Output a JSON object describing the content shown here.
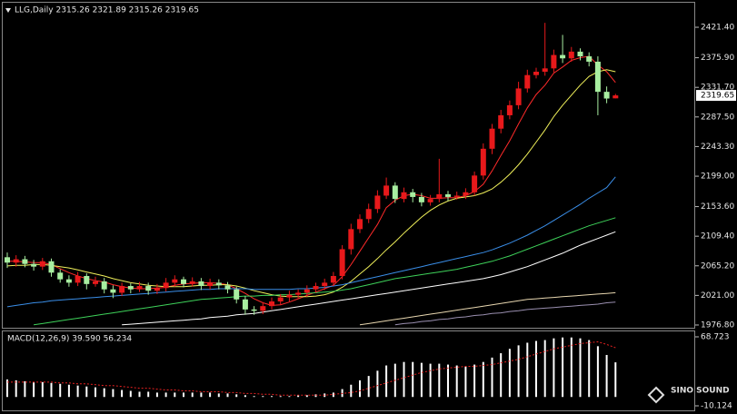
{
  "chart_data": [
    {
      "type": "candlestick",
      "title": "LLG,Daily 2315.26 2321.89 2315.26 2319.65",
      "watermark": "SINO SOUND",
      "up_color": "#e8191b",
      "down_color": "#a8eea0",
      "open": [
        2078,
        2070,
        2075,
        2068,
        2064,
        2072,
        2055,
        2045,
        2040,
        2050,
        2038,
        2042,
        2030,
        2025,
        2035,
        2030,
        2035,
        2028,
        2032,
        2040,
        2045,
        2038,
        2042,
        2035,
        2040,
        2036,
        2030,
        2015,
        2000,
        1998,
        2005,
        2012,
        2018,
        2022,
        2025,
        2030,
        2035,
        2040,
        2050,
        2090,
        2120,
        2135,
        2150,
        2170,
        2185,
        2165,
        2175,
        2168,
        2160,
        2165,
        2172,
        2168,
        2170,
        2175,
        2200,
        2240,
        2270,
        2290,
        2305,
        2330,
        2350,
        2355,
        2360,
        2380,
        2375,
        2385,
        2378,
        2370,
        2325,
        2315.26
      ],
      "high": [
        2085,
        2081,
        2080,
        2074,
        2077,
        2076,
        2060,
        2051,
        2056,
        2054,
        2049,
        2047,
        2036,
        2040,
        2039,
        2041,
        2040,
        2038,
        2047,
        2051,
        2049,
        2048,
        2047,
        2046,
        2045,
        2041,
        2034,
        2020,
        2005,
        2011,
        2018,
        2023,
        2028,
        2030,
        2036,
        2040,
        2046,
        2056,
        2096,
        2128,
        2142,
        2158,
        2178,
        2197,
        2190,
        2182,
        2180,
        2174,
        2171,
        2225,
        2177,
        2176,
        2181,
        2206,
        2248,
        2277,
        2298,
        2312,
        2340,
        2358,
        2361,
        2428,
        2388,
        2410,
        2392,
        2390,
        2384,
        2378,
        2333,
        2321.89
      ],
      "low": [
        2062,
        2064,
        2063,
        2058,
        2059,
        2049,
        2040,
        2034,
        2035,
        2030,
        2034,
        2024,
        2017,
        2020,
        2024,
        2026,
        2022,
        2023,
        2027,
        2034,
        2033,
        2034,
        2029,
        2030,
        2030,
        2024,
        2009,
        1992,
        1992,
        1993,
        2000,
        2007,
        2012,
        2017,
        2019,
        2025,
        2029,
        2035,
        2045,
        2082,
        2114,
        2129,
        2144,
        2165,
        2159,
        2160,
        2160,
        2154,
        2155,
        2160,
        2162,
        2164,
        2165,
        2170,
        2194,
        2232,
        2263,
        2284,
        2299,
        2324,
        2345,
        2349,
        2354,
        2368,
        2370,
        2372,
        2363,
        2290,
        2308,
        2315.26
      ],
      "close": [
        2070,
        2075,
        2068,
        2064,
        2072,
        2055,
        2045,
        2040,
        2050,
        2038,
        2042,
        2030,
        2025,
        2035,
        2030,
        2035,
        2028,
        2032,
        2040,
        2045,
        2038,
        2042,
        2035,
        2040,
        2036,
        2030,
        2015,
        2000,
        1998,
        2005,
        2012,
        2018,
        2022,
        2025,
        2030,
        2035,
        2040,
        2050,
        2090,
        2120,
        2135,
        2150,
        2170,
        2185,
        2165,
        2175,
        2168,
        2160,
        2165,
        2172,
        2168,
        2170,
        2175,
        2200,
        2240,
        2270,
        2290,
        2305,
        2330,
        2350,
        2355,
        2360,
        2380,
        2375,
        2385,
        2378,
        2370,
        2325,
        2315,
        2319.65
      ],
      "series": [
        {
          "color": "#ff2a2a",
          "values": [
            2072,
            2072,
            2071,
            2070,
            2070,
            2067,
            2061,
            2055,
            2050,
            2046,
            2043,
            2041,
            2037,
            2034,
            2032,
            2031,
            2031,
            2032,
            2033,
            2036,
            2038,
            2039,
            2040,
            2040,
            2039,
            2037,
            2031,
            2024,
            2016,
            2010,
            2006,
            2007,
            2011,
            2016,
            2021,
            2026,
            2031,
            2036,
            2049,
            2067,
            2087,
            2107,
            2127,
            2152,
            2163,
            2170,
            2172,
            2170,
            2166,
            2166,
            2167,
            2167,
            2170,
            2176,
            2187,
            2207,
            2230,
            2252,
            2277,
            2301,
            2321,
            2335,
            2353,
            2362,
            2372,
            2376,
            2378,
            2365,
            2355,
            2339
          ]
        },
        {
          "color": "#f0f05a",
          "values": [
            2065,
            2066,
            2066,
            2067,
            2067,
            2066,
            2064,
            2062,
            2059,
            2056,
            2053,
            2050,
            2046,
            2043,
            2040,
            2038,
            2036,
            2035,
            2034,
            2034,
            2034,
            2035,
            2036,
            2036,
            2037,
            2037,
            2035,
            2032,
            2028,
            2025,
            2022,
            2020,
            2019,
            2019,
            2019,
            2020,
            2022,
            2026,
            2033,
            2042,
            2053,
            2064,
            2076,
            2089,
            2101,
            2114,
            2126,
            2138,
            2148,
            2156,
            2162,
            2166,
            2168,
            2170,
            2174,
            2180,
            2190,
            2202,
            2216,
            2232,
            2250,
            2268,
            2288,
            2305,
            2320,
            2335,
            2348,
            2355,
            2358,
            2355
          ]
        },
        {
          "color": "#3a8ee8",
          "values": [
            2004,
            2006,
            2008,
            2010,
            2011,
            2013,
            2014,
            2015,
            2016,
            2017,
            2018,
            2019,
            2020,
            2021,
            2022,
            2023,
            2024,
            2025,
            2026,
            2027,
            2028,
            2029,
            2030,
            2030,
            2031,
            2031,
            2031,
            2031,
            2030,
            2030,
            2030,
            2030,
            2030,
            2031,
            2031,
            2032,
            2033,
            2035,
            2037,
            2040,
            2043,
            2046,
            2049,
            2052,
            2055,
            2058,
            2061,
            2064,
            2067,
            2070,
            2073,
            2076,
            2079,
            2082,
            2085,
            2089,
            2094,
            2099,
            2105,
            2111,
            2118,
            2125,
            2133,
            2141,
            2149,
            2157,
            2166,
            2174,
            2182,
            2198
          ]
        },
        {
          "color": "#3ed25a",
          "values": [
            null,
            null,
            null,
            1977,
            1979,
            1981,
            1983,
            1985,
            1987,
            1989,
            1991,
            1993,
            1995,
            1997,
            1999,
            2001,
            2003,
            2005,
            2007,
            2009,
            2011,
            2013,
            2015,
            2016,
            2017,
            2018,
            2019,
            2020,
            2020,
            2021,
            2021,
            2022,
            2022,
            2023,
            2024,
            2025,
            2026,
            2027,
            2029,
            2031,
            2034,
            2037,
            2040,
            2043,
            2046,
            2048,
            2050,
            2052,
            2054,
            2056,
            2058,
            2060,
            2063,
            2066,
            2069,
            2072,
            2076,
            2080,
            2085,
            2090,
            2095,
            2100,
            2105,
            2110,
            2115,
            2120,
            2125,
            2129,
            2133,
            2137
          ]
        },
        {
          "color": "#ffffff",
          "values": [
            null,
            null,
            null,
            null,
            null,
            null,
            null,
            null,
            null,
            null,
            null,
            null,
            null,
            1977,
            1978,
            1979,
            1980,
            1981,
            1982,
            1983,
            1984,
            1985,
            1986,
            1988,
            1989,
            1990,
            1992,
            1993,
            1994,
            1996,
            1998,
            2000,
            2002,
            2004,
            2006,
            2008,
            2010,
            2012,
            2014,
            2016,
            2018,
            2020,
            2022,
            2024,
            2026,
            2028,
            2030,
            2032,
            2034,
            2036,
            2038,
            2040,
            2042,
            2044,
            2046,
            2049,
            2052,
            2056,
            2060,
            2064,
            2069,
            2074,
            2079,
            2084,
            2090,
            2096,
            2101,
            2106,
            2111,
            2116
          ]
        },
        {
          "color": "#e8d7b0",
          "values": [
            null,
            null,
            null,
            null,
            null,
            null,
            null,
            null,
            null,
            null,
            null,
            null,
            null,
            null,
            null,
            null,
            null,
            null,
            null,
            null,
            null,
            null,
            null,
            null,
            null,
            null,
            null,
            null,
            null,
            null,
            null,
            null,
            null,
            null,
            null,
            null,
            null,
            null,
            null,
            null,
            1977,
            1979,
            1981,
            1983,
            1985,
            1987,
            1989,
            1991,
            1993,
            1995,
            1997,
            1999,
            2001,
            2003,
            2005,
            2007,
            2009,
            2011,
            2013,
            2015,
            2016,
            2017,
            2018,
            2019,
            2020,
            2021,
            2022,
            2023,
            2024,
            2025
          ]
        },
        {
          "color": "#9a8fb0",
          "values": [
            null,
            null,
            null,
            null,
            null,
            null,
            null,
            null,
            null,
            null,
            null,
            null,
            null,
            null,
            null,
            null,
            null,
            null,
            null,
            null,
            null,
            null,
            null,
            null,
            null,
            null,
            null,
            null,
            null,
            null,
            null,
            null,
            null,
            null,
            null,
            null,
            null,
            null,
            null,
            null,
            null,
            null,
            null,
            null,
            1977,
            1979,
            1980,
            1982,
            1983,
            1985,
            1986,
            1988,
            1989,
            1991,
            1992,
            1994,
            1995,
            1997,
            1998,
            2000,
            2001,
            2002,
            2003,
            2004,
            2005,
            2006,
            2007,
            2008,
            2010,
            2011
          ]
        }
      ],
      "ylim": [
        1972.7,
        2459.4
      ],
      "yticks": [
        {
          "value": 2421.4,
          "label": "2421.40"
        },
        {
          "value": 2375.9,
          "label": "2375.90"
        },
        {
          "value": 2331.7,
          "label": "2331.70"
        },
        {
          "value": 2287.5,
          "label": "2287.50"
        },
        {
          "value": 2243.3,
          "label": "2243.30"
        },
        {
          "value": 2199,
          "label": "2199.00"
        },
        {
          "value": 2153.6,
          "label": "2153.60"
        },
        {
          "value": 2109.4,
          "label": "2109.40"
        },
        {
          "value": 2065.2,
          "label": "2065.20"
        },
        {
          "value": 2021,
          "label": "2021.00"
        },
        {
          "value": 1976.8,
          "label": "1976.80"
        }
      ]
    },
    {
      "type": "macd",
      "title": "MACD(12,26,9) 39.590 56.234",
      "series": [
        {
          "color": "#ffffff",
          "values": [
            20,
            19,
            18,
            17,
            17,
            16,
            15,
            14,
            13,
            12,
            11,
            10,
            9,
            8,
            7,
            6,
            6,
            5,
            5,
            5,
            5,
            5,
            5,
            5,
            4,
            4,
            3,
            2,
            1,
            1,
            1,
            1,
            1,
            2,
            2,
            3,
            4,
            5,
            9,
            14,
            19,
            24,
            30,
            36,
            38,
            40,
            40,
            39,
            38,
            38,
            37,
            36,
            35,
            37,
            40,
            45,
            50,
            55,
            59,
            62,
            64,
            65,
            67,
            68,
            68,
            67,
            65,
            58,
            48,
            39.59
          ]
        },
        {
          "color": "#e82020",
          "values": [
            17,
            17,
            17,
            17,
            17,
            17,
            16,
            16,
            15,
            15,
            14,
            13,
            13,
            12,
            11,
            10,
            10,
            9,
            8,
            8,
            7,
            7,
            6,
            6,
            6,
            5,
            5,
            4,
            4,
            3,
            3,
            2,
            2,
            2,
            2,
            2,
            2,
            3,
            4,
            5,
            7,
            10,
            13,
            16,
            19,
            22,
            25,
            28,
            30,
            32,
            33,
            34,
            35,
            35,
            36,
            37,
            39,
            41,
            43,
            46,
            49,
            52,
            55,
            57,
            59,
            61,
            62,
            63,
            60,
            56.234
          ]
        }
      ],
      "ylim": [
        -10.124,
        68.723
      ],
      "yticks": [
        68.723,
        -10.124
      ]
    }
  ]
}
